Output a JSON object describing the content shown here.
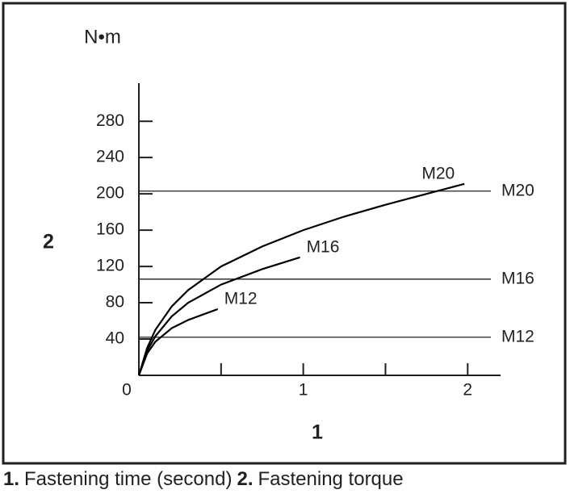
{
  "chart_data": {
    "type": "line",
    "unit_label": "N•m",
    "y_axis_title": "2",
    "x_axis_title": "1",
    "xlim": [
      0,
      2.2
    ],
    "ylim": [
      0,
      322
    ],
    "xticks": [
      0,
      1,
      2
    ],
    "minor_xticks": [
      0.5,
      1.5
    ],
    "yticks": [
      40,
      80,
      120,
      160,
      200,
      240,
      280
    ],
    "color": "#000000",
    "series": [
      {
        "name": "M20",
        "x": [
          0,
          0.05,
          0.1,
          0.2,
          0.3,
          0.5,
          0.75,
          1,
          1.25,
          1.5,
          1.75,
          1.98
        ],
        "values": [
          0,
          30,
          50,
          76,
          94,
          120,
          142,
          160,
          175,
          188,
          200,
          211
        ]
      },
      {
        "name": "M16",
        "x": [
          0,
          0.05,
          0.1,
          0.2,
          0.3,
          0.5,
          0.75,
          0.98
        ],
        "values": [
          0,
          27,
          43,
          65,
          80,
          100,
          117,
          130
        ]
      },
      {
        "name": "M12",
        "x": [
          0,
          0.05,
          0.1,
          0.2,
          0.3,
          0.48
        ],
        "values": [
          0,
          24,
          37,
          52,
          61,
          73
        ]
      }
    ],
    "reference_lines": [
      {
        "label": "M20",
        "value": 203
      },
      {
        "label": "M16",
        "value": 106
      },
      {
        "label": "M12",
        "value": 42
      }
    ]
  },
  "caption": [
    {
      "key": "1.",
      "text": "Fastening time (second)"
    },
    {
      "key": "2.",
      "text": "Fastening torque"
    }
  ]
}
